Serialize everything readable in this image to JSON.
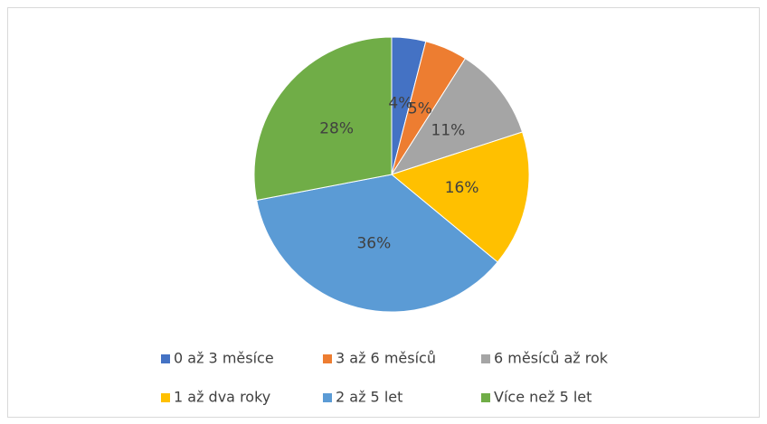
{
  "chart_data": {
    "type": "pie",
    "categories": [
      "0 až 3 měsíce",
      "3 až 6 měsíců",
      "6 měsíců až rok",
      "1 až dva roky",
      "2 až 5 let",
      "Více než 5 let"
    ],
    "values": [
      4,
      5,
      11,
      16,
      36,
      28
    ],
    "value_labels": [
      "4%",
      "5%",
      "11%",
      "16%",
      "36%",
      "28%"
    ],
    "colors": [
      "#4472c4",
      "#ed7d31",
      "#a5a5a5",
      "#ffc000",
      "#5b9bd5",
      "#70ad47"
    ],
    "legend": "bottom"
  }
}
